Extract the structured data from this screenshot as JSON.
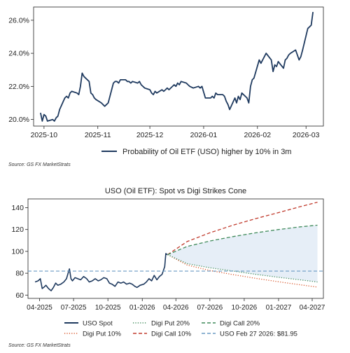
{
  "chart_data": [
    {
      "type": "line",
      "title": "",
      "xlabel": "",
      "ylabel": "",
      "x_ticks": [
        "2025-10",
        "2025-11",
        "2025-12",
        "2026-01",
        "2026-02",
        "2026-03"
      ],
      "x_range": [
        "2025-09-25",
        "2026-03-11"
      ],
      "y_ticks": [
        "20.0%",
        "22.0%",
        "24.0%",
        "26.0%"
      ],
      "ylim": [
        19.6,
        26.8
      ],
      "grid": false,
      "legend_position": "bottom-center",
      "series": [
        {
          "name": "Probability of Oil ETF (USO) higher by 10% in 3m",
          "color": "#1f3a5f",
          "points": [
            [
              "2025-09-29",
              20.4
            ],
            [
              "2025-09-30",
              19.9
            ],
            [
              "2025-10-01",
              20.3
            ],
            [
              "2025-10-02",
              20.2
            ],
            [
              "2025-10-03",
              19.9
            ],
            [
              "2025-10-06",
              20.0
            ],
            [
              "2025-10-07",
              19.9
            ],
            [
              "2025-10-08",
              20.1
            ],
            [
              "2025-10-09",
              20.2
            ],
            [
              "2025-10-10",
              20.6
            ],
            [
              "2025-10-13",
              21.3
            ],
            [
              "2025-10-14",
              21.4
            ],
            [
              "2025-10-15",
              21.3
            ],
            [
              "2025-10-16",
              21.6
            ],
            [
              "2025-10-17",
              21.7
            ],
            [
              "2025-10-20",
              21.6
            ],
            [
              "2025-10-21",
              21.5
            ],
            [
              "2025-10-22",
              22.0
            ],
            [
              "2025-10-23",
              22.8
            ],
            [
              "2025-10-24",
              22.6
            ],
            [
              "2025-10-27",
              22.3
            ],
            [
              "2025-10-28",
              21.6
            ],
            [
              "2025-10-29",
              21.5
            ],
            [
              "2025-10-30",
              21.3
            ],
            [
              "2025-10-31",
              21.2
            ],
            [
              "2025-11-03",
              21.0
            ],
            [
              "2025-11-04",
              20.9
            ],
            [
              "2025-11-05",
              20.8
            ],
            [
              "2025-11-06",
              20.9
            ],
            [
              "2025-11-07",
              21.0
            ],
            [
              "2025-11-10",
              22.2
            ],
            [
              "2025-11-11",
              22.3
            ],
            [
              "2025-11-12",
              22.3
            ],
            [
              "2025-11-13",
              22.2
            ],
            [
              "2025-11-14",
              22.4
            ],
            [
              "2025-11-17",
              22.4
            ],
            [
              "2025-11-18",
              22.3
            ],
            [
              "2025-11-19",
              22.3
            ],
            [
              "2025-11-20",
              22.2
            ],
            [
              "2025-11-21",
              22.3
            ],
            [
              "2025-11-24",
              22.2
            ],
            [
              "2025-11-25",
              22.3
            ],
            [
              "2025-11-26",
              22.1
            ],
            [
              "2025-11-28",
              21.9
            ],
            [
              "2025-12-01",
              21.8
            ],
            [
              "2025-12-02",
              21.6
            ],
            [
              "2025-12-03",
              21.5
            ],
            [
              "2025-12-04",
              21.7
            ],
            [
              "2025-12-05",
              21.6
            ],
            [
              "2025-12-08",
              21.8
            ],
            [
              "2025-12-09",
              21.7
            ],
            [
              "2025-12-10",
              21.8
            ],
            [
              "2025-12-11",
              21.9
            ],
            [
              "2025-12-12",
              21.8
            ],
            [
              "2025-12-15",
              22.1
            ],
            [
              "2025-12-16",
              22.0
            ],
            [
              "2025-12-17",
              22.2
            ],
            [
              "2025-12-18",
              22.1
            ],
            [
              "2025-12-19",
              22.3
            ],
            [
              "2025-12-22",
              22.2
            ],
            [
              "2025-12-23",
              22.1
            ],
            [
              "2025-12-24",
              22.0
            ],
            [
              "2025-12-26",
              21.9
            ],
            [
              "2025-12-29",
              22.0
            ],
            [
              "2025-12-30",
              21.9
            ],
            [
              "2025-12-31",
              22.0
            ],
            [
              "2026-01-02",
              21.3
            ],
            [
              "2026-01-05",
              21.3
            ],
            [
              "2026-01-06",
              21.4
            ],
            [
              "2026-01-07",
              21.3
            ],
            [
              "2026-01-08",
              21.6
            ],
            [
              "2026-01-09",
              21.5
            ],
            [
              "2026-01-12",
              21.5
            ],
            [
              "2026-01-13",
              21.4
            ],
            [
              "2026-01-14",
              21.1
            ],
            [
              "2026-01-15",
              20.9
            ],
            [
              "2026-01-16",
              20.6
            ],
            [
              "2026-01-19",
              21.3
            ],
            [
              "2026-01-20",
              21.0
            ],
            [
              "2026-01-21",
              21.4
            ],
            [
              "2026-01-22",
              21.2
            ],
            [
              "2026-01-23",
              21.6
            ],
            [
              "2026-01-26",
              21.3
            ],
            [
              "2026-01-27",
              21.0
            ],
            [
              "2026-01-28",
              22.0
            ],
            [
              "2026-01-29",
              22.4
            ],
            [
              "2026-01-30",
              22.5
            ],
            [
              "2026-02-02",
              23.6
            ],
            [
              "2026-02-03",
              23.4
            ],
            [
              "2026-02-04",
              23.6
            ],
            [
              "2026-02-05",
              23.8
            ],
            [
              "2026-02-06",
              24.0
            ],
            [
              "2026-02-09",
              23.6
            ],
            [
              "2026-02-10",
              22.9
            ],
            [
              "2026-02-11",
              23.3
            ],
            [
              "2026-02-12",
              23.2
            ],
            [
              "2026-02-13",
              23.5
            ],
            [
              "2026-02-16",
              23.1
            ],
            [
              "2026-02-17",
              23.6
            ],
            [
              "2026-02-18",
              23.7
            ],
            [
              "2026-02-19",
              23.9
            ],
            [
              "2026-02-20",
              24.0
            ],
            [
              "2026-02-23",
              24.2
            ],
            [
              "2026-02-24",
              23.9
            ],
            [
              "2026-02-25",
              23.6
            ],
            [
              "2026-02-26",
              23.8
            ],
            [
              "2026-02-27",
              24.2
            ],
            [
              "2026-03-02",
              25.5
            ],
            [
              "2026-03-03",
              25.6
            ],
            [
              "2026-03-04",
              25.7
            ],
            [
              "2026-03-05",
              26.5
            ]
          ]
        }
      ],
      "source": "Source: GS FX MarketStrats"
    },
    {
      "type": "line",
      "title": "USO (Oil ETF): Spot vs Digi Strikes Cone",
      "xlabel": "",
      "ylabel": "",
      "x_ticks": [
        "04-2025",
        "07-2025",
        "10-2025",
        "01-2026",
        "04-2026",
        "07-2026",
        "10-2026",
        "01-2027",
        "04-2027"
      ],
      "x_range": [
        "2025-03-01",
        "2027-05-01"
      ],
      "y_ticks": [
        "60",
        "80",
        "100",
        "120",
        "140"
      ],
      "ylim": [
        57,
        148
      ],
      "grid": false,
      "legend_position": "bottom",
      "shaded_cone": {
        "from_series": "Digi Put 20%",
        "to_series": "Digi Call 20%",
        "color": "#e6eef7"
      },
      "series": [
        {
          "name": "USO Spot",
          "color": "#1f3a5f",
          "style": "solid",
          "points": [
            [
              "2025-03-20",
              72
            ],
            [
              "2025-03-28",
              73
            ],
            [
              "2025-04-03",
              75
            ],
            [
              "2025-04-08",
              66
            ],
            [
              "2025-04-12",
              67
            ],
            [
              "2025-04-18",
              69
            ],
            [
              "2025-04-25",
              66
            ],
            [
              "2025-05-02",
              64
            ],
            [
              "2025-05-08",
              67
            ],
            [
              "2025-05-14",
              71
            ],
            [
              "2025-05-20",
              69
            ],
            [
              "2025-05-28",
              70
            ],
            [
              "2025-06-05",
              72
            ],
            [
              "2025-06-12",
              75
            ],
            [
              "2025-06-18",
              82
            ],
            [
              "2025-06-20",
              84
            ],
            [
              "2025-06-24",
              75
            ],
            [
              "2025-06-28",
              73
            ],
            [
              "2025-07-05",
              76
            ],
            [
              "2025-07-12",
              75
            ],
            [
              "2025-07-20",
              74
            ],
            [
              "2025-07-28",
              77
            ],
            [
              "2025-08-05",
              75
            ],
            [
              "2025-08-12",
              72
            ],
            [
              "2025-08-20",
              73
            ],
            [
              "2025-08-28",
              75
            ],
            [
              "2025-09-05",
              73
            ],
            [
              "2025-09-12",
              74
            ],
            [
              "2025-09-20",
              76
            ],
            [
              "2025-09-28",
              75
            ],
            [
              "2025-10-05",
              71
            ],
            [
              "2025-10-12",
              70
            ],
            [
              "2025-10-20",
              68
            ],
            [
              "2025-10-28",
              72
            ],
            [
              "2025-11-05",
              71
            ],
            [
              "2025-11-12",
              72
            ],
            [
              "2025-11-20",
              70
            ],
            [
              "2025-11-28",
              71
            ],
            [
              "2025-12-05",
              70
            ],
            [
              "2025-12-12",
              68
            ],
            [
              "2025-12-18",
              67
            ],
            [
              "2025-12-26",
              69
            ],
            [
              "2026-01-05",
              70
            ],
            [
              "2026-01-12",
              72
            ],
            [
              "2026-01-19",
              75
            ],
            [
              "2026-01-26",
              73
            ],
            [
              "2026-02-02",
              78
            ],
            [
              "2026-02-09",
              74
            ],
            [
              "2026-02-16",
              77
            ],
            [
              "2026-02-23",
              79
            ],
            [
              "2026-03-02",
              86
            ],
            [
              "2026-03-05",
              98
            ],
            [
              "2026-03-09",
              97
            ]
          ]
        },
        {
          "name": "Digi Put 10%",
          "color": "#d9572b",
          "style": "dotted",
          "points": [
            [
              "2026-03-10",
              97
            ],
            [
              "2026-05-01",
              87.5
            ],
            [
              "2026-07-01",
              82.5
            ],
            [
              "2026-09-01",
              78.7
            ],
            [
              "2026-11-01",
              75.3
            ],
            [
              "2027-01-01",
              72.2
            ],
            [
              "2027-03-01",
              69.4
            ],
            [
              "2027-04-15",
              67.3
            ]
          ]
        },
        {
          "name": "Digi Put 20%",
          "color": "#3f8a5a",
          "style": "dotted",
          "points": [
            [
              "2026-03-10",
              97
            ],
            [
              "2026-05-01",
              88.8
            ],
            [
              "2026-07-01",
              85.0
            ],
            [
              "2026-09-01",
              82.0
            ],
            [
              "2026-11-01",
              79.0
            ],
            [
              "2027-01-01",
              76.3
            ],
            [
              "2027-03-01",
              73.9
            ],
            [
              "2027-04-15",
              72.0
            ]
          ]
        },
        {
          "name": "Digi Call 10%",
          "color": "#c0392b",
          "style": "dashed",
          "points": [
            [
              "2026-03-10",
              97
            ],
            [
              "2026-05-01",
              109
            ],
            [
              "2026-07-01",
              117
            ],
            [
              "2026-09-01",
              124
            ],
            [
              "2026-11-01",
              130
            ],
            [
              "2027-01-01",
              135.5
            ],
            [
              "2027-03-01",
              141
            ],
            [
              "2027-04-15",
              145
            ]
          ]
        },
        {
          "name": "Digi Call 20%",
          "color": "#3f8a5a",
          "style": "dashed",
          "points": [
            [
              "2026-03-10",
              97
            ],
            [
              "2026-05-01",
              104.5
            ],
            [
              "2026-07-01",
              109.5
            ],
            [
              "2026-09-01",
              113.5
            ],
            [
              "2026-11-01",
              117
            ],
            [
              "2027-01-01",
              120
            ],
            [
              "2027-03-01",
              122.5
            ],
            [
              "2027-04-15",
              124
            ]
          ]
        },
        {
          "name": "USO Feb 27 2026: $81.95",
          "color": "#6a9bc3",
          "style": "dashed",
          "horizontal_value": 81.95
        }
      ],
      "source": "Source: GS FX MarketStrats"
    }
  ]
}
